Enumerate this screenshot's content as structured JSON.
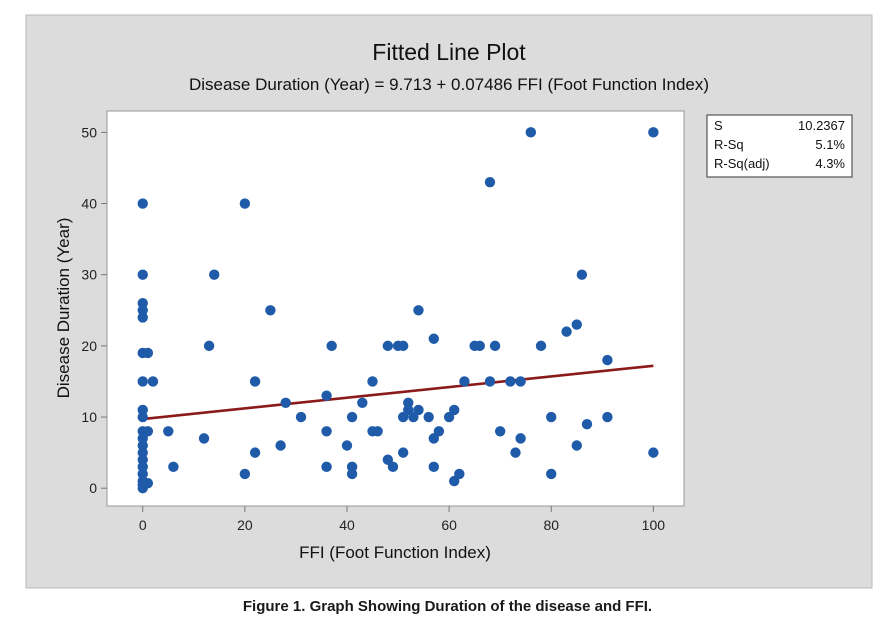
{
  "chart_data": {
    "type": "scatter",
    "title": "Fitted Line Plot",
    "subtitle": "Disease Duration (Year) = 9.713 + 0.07486 FFI (Foot Function Index)",
    "xlabel": "FFI (Foot Function Index)",
    "ylabel": "Disease Duration (Year)",
    "xlim": [
      -7,
      106
    ],
    "ylim": [
      -2.5,
      53
    ],
    "xticks": [
      0,
      20,
      40,
      60,
      80,
      100
    ],
    "yticks": [
      0,
      10,
      20,
      30,
      40,
      50
    ],
    "grid": false,
    "fit_line": {
      "intercept": 9.713,
      "slope": 0.07486,
      "x_range": [
        0,
        100
      ]
    },
    "stats": [
      {
        "label": "S",
        "value": "10.2367"
      },
      {
        "label": "R-Sq",
        "value": "5.1%"
      },
      {
        "label": "R-Sq(adj)",
        "value": "4.3%"
      }
    ],
    "series": [
      {
        "name": "observations",
        "points": [
          [
            0,
            40
          ],
          [
            0,
            30
          ],
          [
            0,
            26
          ],
          [
            0,
            25
          ],
          [
            0,
            24
          ],
          [
            0,
            19
          ],
          [
            0,
            15
          ],
          [
            0,
            11
          ],
          [
            0,
            10
          ],
          [
            0,
            8
          ],
          [
            0,
            7
          ],
          [
            0,
            6
          ],
          [
            0,
            5
          ],
          [
            0,
            4
          ],
          [
            0,
            3
          ],
          [
            0,
            2
          ],
          [
            0,
            1
          ],
          [
            0,
            0.5
          ],
          [
            0,
            0
          ],
          [
            1,
            19
          ],
          [
            1,
            8
          ],
          [
            1,
            0.7
          ],
          [
            2,
            15
          ],
          [
            5,
            8
          ],
          [
            6,
            3
          ],
          [
            12,
            7
          ],
          [
            13,
            20
          ],
          [
            14,
            30
          ],
          [
            20,
            40
          ],
          [
            20,
            2
          ],
          [
            22,
            15
          ],
          [
            22,
            5
          ],
          [
            25,
            25
          ],
          [
            27,
            6
          ],
          [
            28,
            12
          ],
          [
            31,
            10
          ],
          [
            36,
            13
          ],
          [
            36,
            8
          ],
          [
            36,
            3
          ],
          [
            37,
            20
          ],
          [
            40,
            6
          ],
          [
            41,
            10
          ],
          [
            41,
            3
          ],
          [
            41,
            2
          ],
          [
            43,
            12
          ],
          [
            45,
            15
          ],
          [
            45,
            8
          ],
          [
            46,
            8
          ],
          [
            48,
            20
          ],
          [
            48,
            4
          ],
          [
            49,
            3
          ],
          [
            50,
            20
          ],
          [
            51,
            20
          ],
          [
            51,
            10
          ],
          [
            51,
            5
          ],
          [
            52,
            12
          ],
          [
            52,
            11
          ],
          [
            53,
            10
          ],
          [
            54,
            25
          ],
          [
            54,
            11
          ],
          [
            56,
            10
          ],
          [
            57,
            21
          ],
          [
            57,
            7
          ],
          [
            57,
            3
          ],
          [
            58,
            8
          ],
          [
            60,
            10
          ],
          [
            61,
            1
          ],
          [
            61,
            11
          ],
          [
            62,
            2
          ],
          [
            63,
            15
          ],
          [
            65,
            20
          ],
          [
            66,
            20
          ],
          [
            68,
            43
          ],
          [
            68,
            15
          ],
          [
            69,
            20
          ],
          [
            70,
            8
          ],
          [
            72,
            15
          ],
          [
            73,
            5
          ],
          [
            74,
            15
          ],
          [
            74,
            7
          ],
          [
            76,
            50
          ],
          [
            78,
            20
          ],
          [
            80,
            10
          ],
          [
            80,
            2
          ],
          [
            83,
            22
          ],
          [
            85,
            23
          ],
          [
            85,
            6
          ],
          [
            86,
            30
          ],
          [
            87,
            9
          ],
          [
            91,
            18
          ],
          [
            91,
            10
          ],
          [
            100,
            50
          ],
          [
            100,
            5
          ]
        ]
      }
    ],
    "caption": "Figure 1. Graph Showing Duration of the disease and FFI.",
    "colors": {
      "outer_bg": "#dcdcdc",
      "plot_bg": "#ffffff",
      "point": "#1f5ba8",
      "fit_line": "#8b1a1a",
      "axis": "#777777"
    }
  }
}
